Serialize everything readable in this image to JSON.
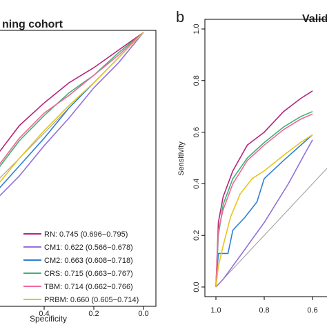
{
  "panels": {
    "left": {
      "title": "ning cohort",
      "xlabel": "Specificity"
    },
    "right": {
      "letter": "b",
      "title": "Valid",
      "ylabel": "Sensitivity"
    }
  },
  "chart_data": [
    {
      "type": "line",
      "title": "ning cohort",
      "xlabel": "Specificity",
      "ylabel": "",
      "x_reversed": true,
      "xlim": [
        1.0,
        0.0
      ],
      "ylim": [
        0.0,
        1.0
      ],
      "x_ticks": [
        "0.4",
        "0.2",
        "0.0"
      ],
      "x_tick_values": [
        0.4,
        0.2,
        0.0
      ],
      "reference_line": true,
      "grid": false,
      "legend_position": "bottom-right",
      "series": [
        {
          "name": "RN",
          "auc_label": "RN: 0.745 (0.696−0.795)",
          "color": "#b5247f",
          "points": [
            [
              0.6,
              0.5
            ],
            [
              0.5,
              0.63
            ],
            [
              0.4,
              0.72
            ],
            [
              0.3,
              0.8
            ],
            [
              0.2,
              0.86
            ],
            [
              0.1,
              0.93
            ],
            [
              0.0,
              1.0
            ]
          ]
        },
        {
          "name": "CM1",
          "auc_label": "CM1: 0.622 (0.566−0.678)",
          "color": "#9370db",
          "points": [
            [
              0.6,
              0.33
            ],
            [
              0.5,
              0.43
            ],
            [
              0.4,
              0.55
            ],
            [
              0.3,
              0.66
            ],
            [
              0.2,
              0.78
            ],
            [
              0.1,
              0.88
            ],
            [
              0.0,
              1.0
            ]
          ]
        },
        {
          "name": "CM2",
          "auc_label": "CM2: 0.663 (0.608−0.718)",
          "color": "#2f7fd1",
          "points": [
            [
              0.6,
              0.36
            ],
            [
              0.5,
              0.47
            ],
            [
              0.4,
              0.58
            ],
            [
              0.3,
              0.7
            ],
            [
              0.2,
              0.8
            ],
            [
              0.1,
              0.9
            ],
            [
              0.0,
              1.0
            ]
          ]
        },
        {
          "name": "CRS",
          "auc_label": "CRS: 0.715 (0.663−0.767)",
          "color": "#3cb371",
          "points": [
            [
              0.6,
              0.44
            ],
            [
              0.5,
              0.57
            ],
            [
              0.4,
              0.67
            ],
            [
              0.3,
              0.76
            ],
            [
              0.2,
              0.83
            ],
            [
              0.1,
              0.92
            ],
            [
              0.0,
              1.0
            ]
          ]
        },
        {
          "name": "TBM",
          "auc_label": "TBM: 0.714 (0.662−0.766)",
          "color": "#f0679a",
          "points": [
            [
              0.6,
              0.45
            ],
            [
              0.5,
              0.58
            ],
            [
              0.4,
              0.68
            ],
            [
              0.3,
              0.75
            ],
            [
              0.2,
              0.83
            ],
            [
              0.1,
              0.91
            ],
            [
              0.0,
              1.0
            ]
          ]
        },
        {
          "name": "PRBM",
          "auc_label": "PRBM: 0.660 (0.605−0.714)",
          "color": "#e6c619",
          "points": [
            [
              0.6,
              0.38
            ],
            [
              0.5,
              0.5
            ],
            [
              0.4,
              0.61
            ],
            [
              0.3,
              0.71
            ],
            [
              0.2,
              0.8
            ],
            [
              0.1,
              0.9
            ],
            [
              0.0,
              1.0
            ]
          ]
        }
      ]
    },
    {
      "type": "line",
      "title": "Valid",
      "xlabel": "",
      "ylabel": "Sensitivity",
      "x_reversed": true,
      "xlim": [
        1.0,
        0.0
      ],
      "ylim": [
        0.0,
        1.0
      ],
      "x_ticks": [
        "1.0",
        "0.8",
        "0.6"
      ],
      "x_tick_values": [
        1.0,
        0.8,
        0.6
      ],
      "y_ticks": [
        "0.0",
        "0.2",
        "0.4",
        "0.6",
        "0.8",
        "1.0"
      ],
      "y_tick_values": [
        0.0,
        0.2,
        0.4,
        0.6,
        0.8,
        1.0
      ],
      "reference_line": true,
      "grid": false,
      "series": [
        {
          "name": "RN",
          "color": "#b5247f",
          "points": [
            [
              1.0,
              0.0
            ],
            [
              0.99,
              0.25
            ],
            [
              0.97,
              0.35
            ],
            [
              0.93,
              0.45
            ],
            [
              0.87,
              0.55
            ],
            [
              0.8,
              0.6
            ],
            [
              0.72,
              0.68
            ],
            [
              0.65,
              0.73
            ],
            [
              0.6,
              0.76
            ]
          ]
        },
        {
          "name": "CM1",
          "color": "#9370db",
          "points": [
            [
              1.0,
              0.0
            ],
            [
              0.97,
              0.03
            ],
            [
              0.9,
              0.12
            ],
            [
              0.8,
              0.25
            ],
            [
              0.7,
              0.4
            ],
            [
              0.63,
              0.52
            ],
            [
              0.6,
              0.57
            ]
          ]
        },
        {
          "name": "CM2",
          "color": "#2f7fd1",
          "points": [
            [
              1.0,
              0.0
            ],
            [
              0.99,
              0.13
            ],
            [
              0.95,
              0.13
            ],
            [
              0.93,
              0.22
            ],
            [
              0.88,
              0.27
            ],
            [
              0.83,
              0.33
            ],
            [
              0.8,
              0.42
            ],
            [
              0.72,
              0.49
            ],
            [
              0.66,
              0.54
            ],
            [
              0.6,
              0.59
            ]
          ]
        },
        {
          "name": "CRS",
          "color": "#3cb371",
          "points": [
            [
              1.0,
              0.0
            ],
            [
              0.99,
              0.2
            ],
            [
              0.97,
              0.32
            ],
            [
              0.93,
              0.42
            ],
            [
              0.87,
              0.5
            ],
            [
              0.8,
              0.56
            ],
            [
              0.72,
              0.62
            ],
            [
              0.65,
              0.66
            ],
            [
              0.6,
              0.68
            ]
          ]
        },
        {
          "name": "TBM",
          "color": "#f0679a",
          "points": [
            [
              1.0,
              0.0
            ],
            [
              0.99,
              0.22
            ],
            [
              0.97,
              0.3
            ],
            [
              0.93,
              0.4
            ],
            [
              0.87,
              0.49
            ],
            [
              0.8,
              0.55
            ],
            [
              0.72,
              0.61
            ],
            [
              0.65,
              0.65
            ],
            [
              0.6,
              0.67
            ]
          ]
        },
        {
          "name": "PRBM",
          "color": "#e6c619",
          "points": [
            [
              1.0,
              0.0
            ],
            [
              0.99,
              0.08
            ],
            [
              0.97,
              0.16
            ],
            [
              0.94,
              0.27
            ],
            [
              0.9,
              0.36
            ],
            [
              0.85,
              0.42
            ],
            [
              0.8,
              0.45
            ],
            [
              0.72,
              0.51
            ],
            [
              0.65,
              0.56
            ],
            [
              0.6,
              0.59
            ]
          ]
        }
      ]
    }
  ]
}
